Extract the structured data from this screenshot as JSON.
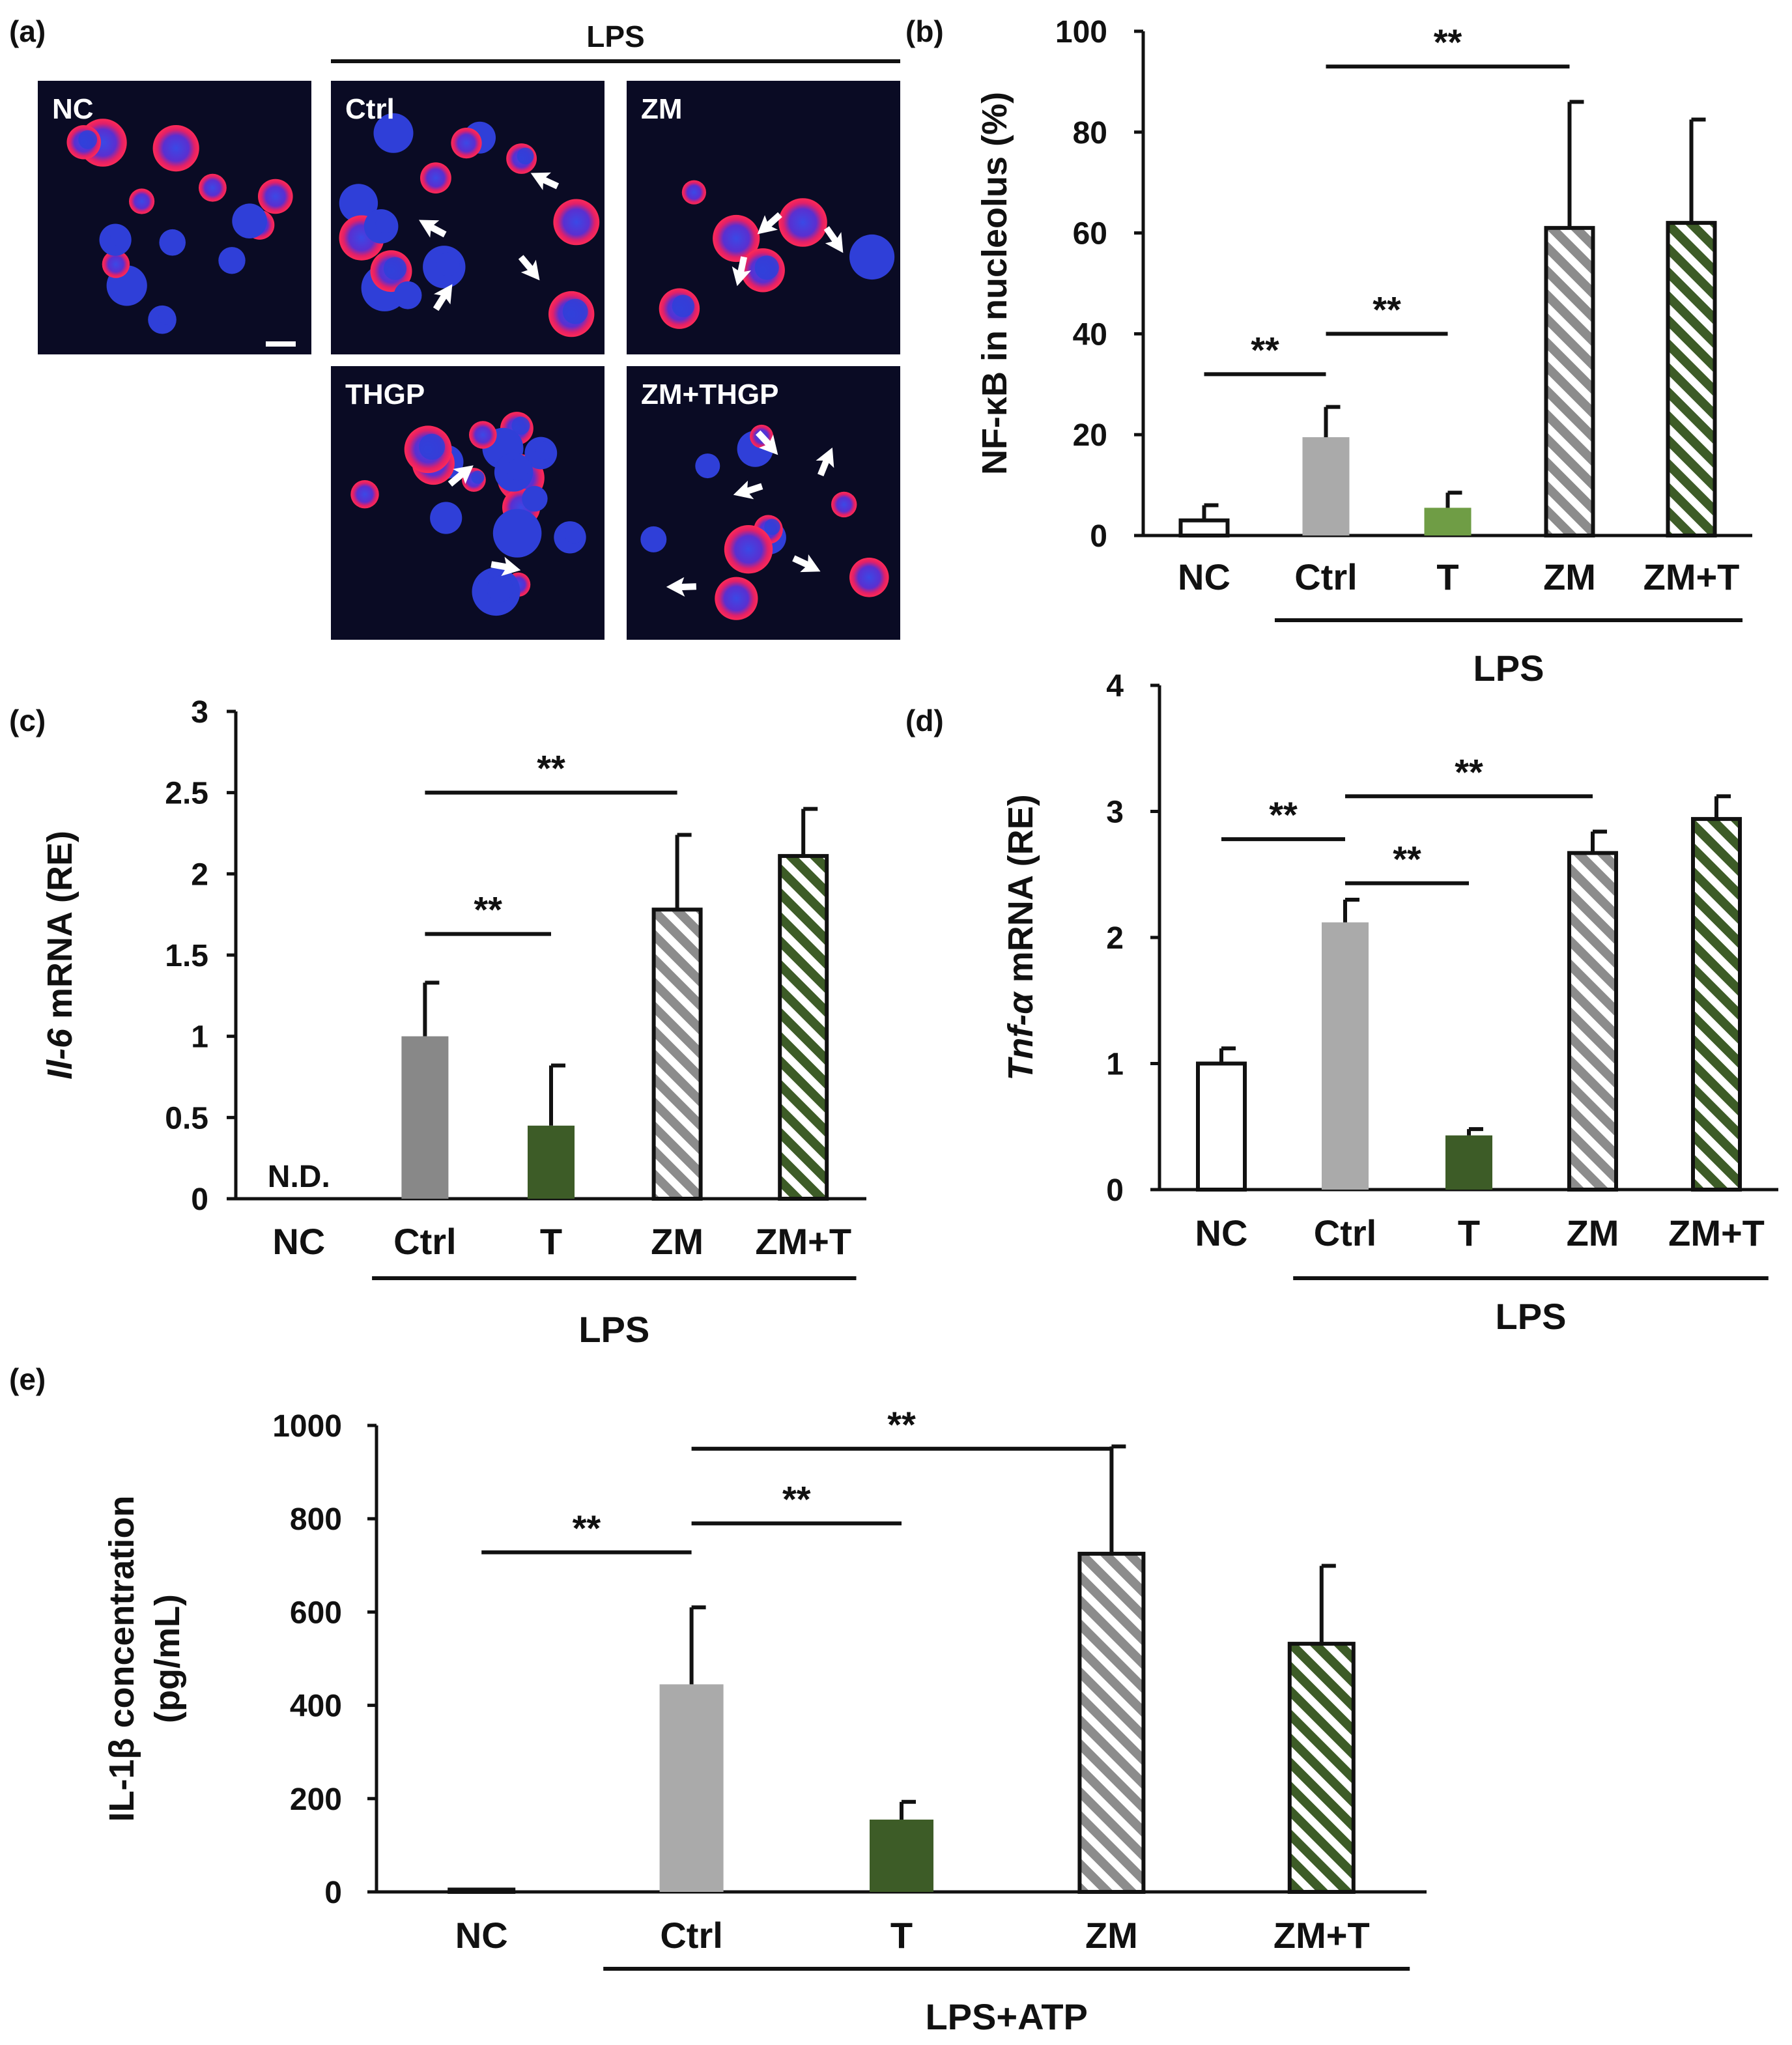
{
  "figure": {
    "panel_a": {
      "label": "(a)",
      "group_label": "LPS",
      "images": [
        {
          "label": "NC",
          "cells": 14,
          "arrows": 0
        },
        {
          "label": "Ctrl",
          "cells": 14,
          "arrows": 4
        },
        {
          "label": "ZM",
          "cells": 6,
          "arrows": 3
        },
        {
          "label": "THGP",
          "cells": 18,
          "arrows": 2
        },
        {
          "label": "ZM+THGP",
          "cells": 10,
          "arrows": 5
        }
      ],
      "colors": {
        "background": "#0a0b24",
        "nucleus": "#2f3fd8",
        "nfkb": "#ff2a55",
        "arrow": "#ffffff"
      }
    }
  },
  "chart_data": [
    {
      "id": "b",
      "panel_label": "(b)",
      "type": "bar",
      "ylabel": "NF-κB in nucleolus (%)",
      "ylim": [
        0,
        100
      ],
      "yticks": [
        "0",
        "20",
        "40",
        "60",
        "80",
        "100"
      ],
      "categories": [
        "NC",
        "Ctrl",
        "T",
        "ZM",
        "ZM+T"
      ],
      "values": [
        3,
        19.5,
        5.5,
        61,
        62
      ],
      "errors": [
        3,
        6,
        3,
        25,
        20.5
      ],
      "fills": [
        "white",
        "#aaaaaa",
        "#6f9d45",
        "hatch-gray",
        "hatch-green"
      ],
      "group_label": "LPS",
      "group_span": [
        1,
        4
      ],
      "significance": [
        {
          "from": 0,
          "to": 1,
          "label": "**",
          "y": 32
        },
        {
          "from": 1,
          "to": 2,
          "label": "**",
          "y": 40
        },
        {
          "from": 1,
          "to": 3,
          "label": "**",
          "y": 93
        }
      ]
    },
    {
      "id": "c",
      "panel_label": "(c)",
      "type": "bar",
      "ylabel_prefix": "Il-6",
      "ylabel_suffix": " mRNA (RE)",
      "ylim": [
        0,
        3
      ],
      "yticks": [
        "0",
        "0.5",
        "1",
        "1.5",
        "2",
        "2.5",
        "3"
      ],
      "categories": [
        "NC",
        "Ctrl",
        "T",
        "ZM",
        "ZM+T"
      ],
      "values": [
        0,
        1.0,
        0.45,
        1.78,
        2.11
      ],
      "errors": [
        0,
        0.33,
        0.37,
        0.46,
        0.29
      ],
      "fills": [
        "none",
        "#888888",
        "#3d5c27",
        "hatch-gray",
        "hatch-green"
      ],
      "nd_label": "N.D.",
      "group_label": "LPS",
      "group_span": [
        1,
        4
      ],
      "significance": [
        {
          "from": 1,
          "to": 2,
          "label": "**",
          "y": 1.63
        },
        {
          "from": 1,
          "to": 3,
          "label": "**",
          "y": 2.5
        }
      ]
    },
    {
      "id": "d",
      "panel_label": "(d)",
      "type": "bar",
      "ylabel_prefix": "Tnf-α",
      "ylabel_suffix": " mRNA (RE)",
      "ylim": [
        0,
        4
      ],
      "yticks": [
        "0",
        "1",
        "2",
        "3",
        "4"
      ],
      "categories": [
        "NC",
        "Ctrl",
        "T",
        "ZM",
        "ZM+T"
      ],
      "values": [
        1.0,
        2.12,
        0.43,
        2.67,
        2.94
      ],
      "errors": [
        0.12,
        0.18,
        0.05,
        0.17,
        0.18
      ],
      "fills": [
        "white",
        "#aaaaaa",
        "#3d5c27",
        "hatch-gray",
        "hatch-green"
      ],
      "group_label": "LPS",
      "group_span": [
        1,
        4
      ],
      "significance": [
        {
          "from": 0,
          "to": 1,
          "label": "**",
          "y": 2.78
        },
        {
          "from": 1,
          "to": 2,
          "label": "**",
          "y": 2.43
        },
        {
          "from": 1,
          "to": 3,
          "label": "**",
          "y": 3.12
        }
      ]
    },
    {
      "id": "e",
      "panel_label": "(e)",
      "type": "bar",
      "ylabel_line1": "IL-1β concentration",
      "ylabel_line2": "(pg/mL)",
      "ylim": [
        0,
        1000
      ],
      "yticks": [
        "0",
        "200",
        "400",
        "600",
        "800",
        "1000"
      ],
      "categories": [
        "NC",
        "Ctrl",
        "T",
        "ZM",
        "ZM+T"
      ],
      "values": [
        5,
        445,
        155,
        725,
        532
      ],
      "errors": [
        0,
        165,
        38,
        230,
        167
      ],
      "fills": [
        "white",
        "#aaaaaa",
        "#3d5c27",
        "hatch-gray",
        "hatch-green"
      ],
      "group_label": "LPS+ATP",
      "group_span": [
        1,
        4
      ],
      "significance": [
        {
          "from": 0,
          "to": 1,
          "label": "**",
          "y": 728
        },
        {
          "from": 1,
          "to": 2,
          "label": "**",
          "y": 790
        },
        {
          "from": 1,
          "to": 3,
          "label": "**",
          "y": 950
        }
      ]
    }
  ]
}
